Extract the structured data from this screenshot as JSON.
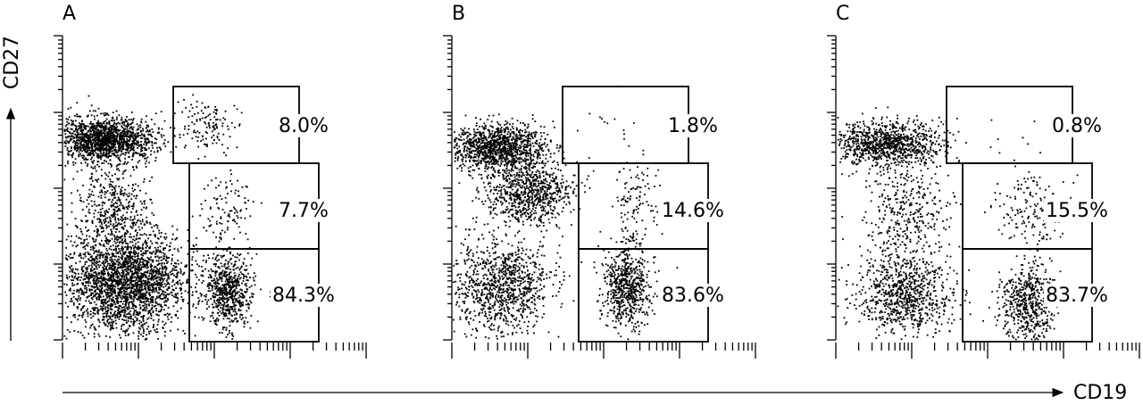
{
  "axes": {
    "x": "CD19",
    "y": "CD27"
  },
  "panels": [
    {
      "letter": "A",
      "gates": [
        "8.0%",
        "7.7%",
        "84.3%"
      ]
    },
    {
      "letter": "B",
      "gates": [
        "1.8%",
        "14.6%",
        "83.6%"
      ]
    },
    {
      "letter": "C",
      "gates": [
        "0.8%",
        "15.5%",
        "83.7%"
      ]
    }
  ]
}
